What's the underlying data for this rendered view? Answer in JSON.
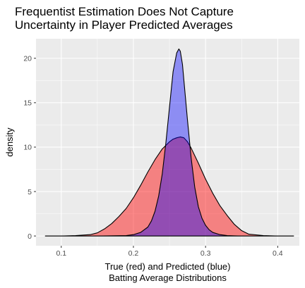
{
  "chart_data": {
    "type": "area",
    "title": [
      "Frequentist Estimation Does Not Capture",
      "Uncertainty in Player Predicted Averages"
    ],
    "xlabel": [
      "True (red) and Predicted (blue)",
      "Batting Average Distributions"
    ],
    "ylabel": "density",
    "xlim": [
      0.065,
      0.43
    ],
    "ylim": [
      -1.1,
      22.2
    ],
    "x_ticks": [
      {
        "value": 0.1,
        "label": "0.1"
      },
      {
        "value": 0.2,
        "label": "0.2"
      },
      {
        "value": 0.3,
        "label": "0.3"
      },
      {
        "value": 0.4,
        "label": "0.4"
      }
    ],
    "y_ticks": [
      {
        "value": 0,
        "label": "0"
      },
      {
        "value": 5,
        "label": "5"
      },
      {
        "value": 10,
        "label": "10"
      },
      {
        "value": 15,
        "label": "15"
      },
      {
        "value": 20,
        "label": "20"
      }
    ],
    "grid": true,
    "panel_background": "#ebebeb",
    "series": [
      {
        "fill": "#ff0000",
        "fill_opacity": 0.45,
        "x": [
          0.078,
          0.1,
          0.12,
          0.14,
          0.15,
          0.16,
          0.17,
          0.18,
          0.19,
          0.2,
          0.21,
          0.22,
          0.23,
          0.24,
          0.25,
          0.255,
          0.26,
          0.265,
          0.27,
          0.275,
          0.28,
          0.29,
          0.3,
          0.31,
          0.32,
          0.33,
          0.34,
          0.35,
          0.36,
          0.38,
          0.4,
          0.422
        ],
        "values": [
          0.0,
          0.0,
          0.05,
          0.15,
          0.35,
          0.8,
          1.4,
          2.2,
          3.1,
          4.3,
          5.7,
          7.2,
          8.6,
          9.8,
          10.6,
          10.9,
          11.05,
          11.15,
          11.05,
          10.6,
          9.9,
          8.2,
          6.4,
          4.8,
          3.4,
          2.3,
          1.3,
          0.6,
          0.2,
          0.05,
          0.0,
          0.0
        ]
      },
      {
        "fill": "#0000ff",
        "fill_opacity": 0.4,
        "x": [
          0.078,
          0.15,
          0.19,
          0.2,
          0.21,
          0.22,
          0.225,
          0.23,
          0.235,
          0.24,
          0.245,
          0.25,
          0.255,
          0.26,
          0.263,
          0.265,
          0.268,
          0.27,
          0.275,
          0.28,
          0.285,
          0.29,
          0.295,
          0.3,
          0.305,
          0.31,
          0.32,
          0.33,
          0.34,
          0.35,
          0.36,
          0.38,
          0.422
        ],
        "values": [
          0.0,
          0.0,
          0.05,
          0.15,
          0.4,
          1.0,
          1.7,
          2.8,
          4.5,
          7.0,
          10.5,
          14.5,
          18.5,
          20.6,
          21.05,
          20.8,
          19.3,
          17.5,
          13.0,
          8.8,
          5.5,
          3.3,
          2.0,
          1.2,
          0.7,
          0.4,
          0.15,
          0.05,
          0.02,
          0.0,
          0.0,
          0.0,
          0.0
        ]
      }
    ]
  }
}
